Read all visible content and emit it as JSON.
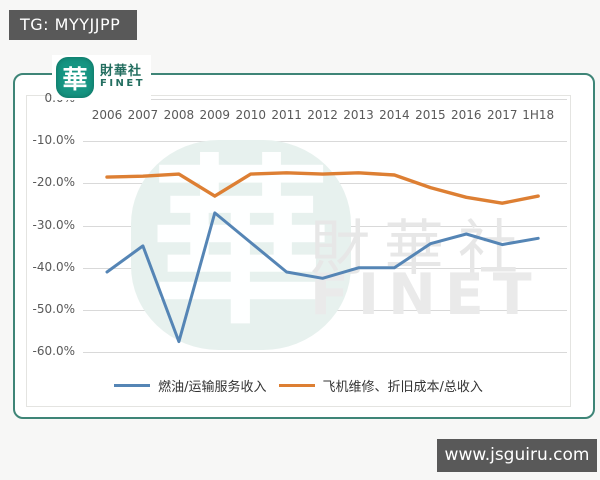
{
  "page": {
    "top_badge": "TG: MYYJJPP",
    "bottom_badge": "www.jsguiru.com"
  },
  "logo": {
    "glyph": "華",
    "name_cn": "財華社",
    "name_en": "FINET"
  },
  "watermark": {
    "glyph": "華",
    "text_cn": "財華社",
    "text_en": "FINET"
  },
  "colors": {
    "card_border_teal": "#3e8577",
    "logo_teal": "#169582",
    "badge_bg": "#595959",
    "grid_gray": "#d9d9d9",
    "axis_text": "#595959",
    "series_blue": "#5585b5",
    "series_orange": "#dd7f33"
  },
  "chart_data": {
    "type": "line",
    "categories": [
      "2006",
      "2007",
      "2008",
      "2009",
      "2010",
      "2011",
      "2012",
      "2013",
      "2014",
      "2015",
      "2016",
      "2017",
      "1H18"
    ],
    "series": [
      {
        "name": "燃油/运输服务收入",
        "color": "#5585b5",
        "values": [
          -41.0,
          -34.8,
          -57.5,
          -27.0,
          -34.0,
          -41.0,
          -42.5,
          -40.0,
          -40.0,
          -34.3,
          -32.0,
          -34.5,
          -33.0
        ]
      },
      {
        "name": "飞机维修、折旧成本/总收入",
        "color": "#dd7f33",
        "values": [
          -18.5,
          -18.3,
          -17.8,
          -23.0,
          -17.8,
          -17.5,
          -17.8,
          -17.5,
          -18.0,
          -21.0,
          -23.3,
          -24.7,
          -23.0
        ]
      }
    ],
    "title": "",
    "xlabel": "",
    "ylabel": "",
    "y_ticks": [
      "0.0%",
      "-10.0%",
      "-20.0%",
      "-30.0%",
      "-40.0%",
      "-50.0%",
      "-60.0%"
    ],
    "ylim": [
      -60,
      0
    ],
    "grid": true,
    "legend_position": "bottom"
  }
}
